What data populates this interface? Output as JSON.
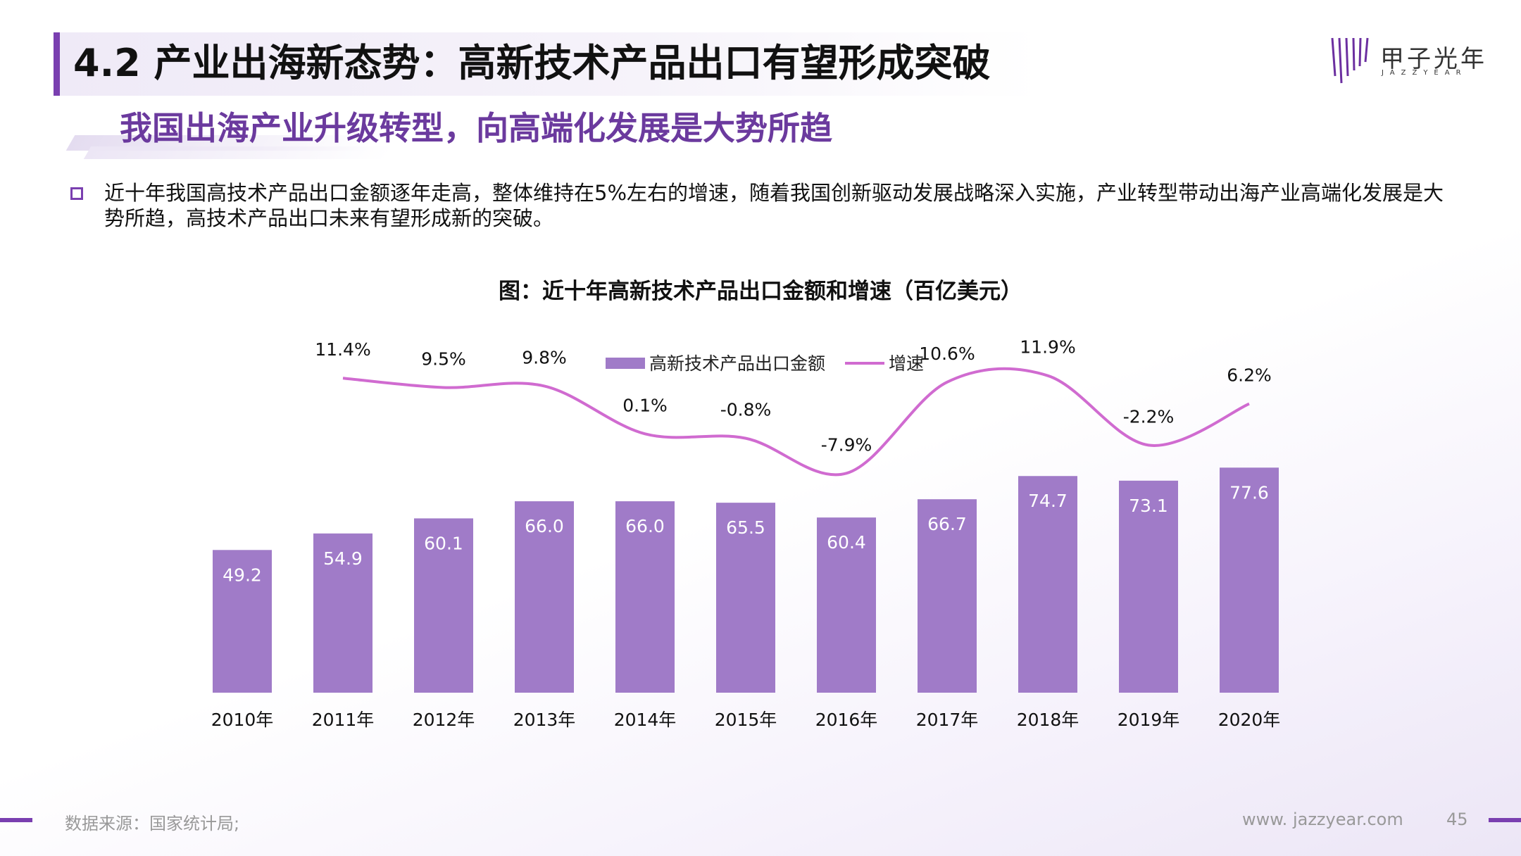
{
  "header": {
    "title": "4.2 产业出海新态势：高新技术产品出口有望形成突破",
    "subtitle": "我国出海产业升级转型，向高端化发展是大势所趋",
    "bullet": "近十年我国高技术产品出口金额逐年走高，整体维持在5%左右的增速，随着我国创新驱动发展战略深入实施，产业转型带动出海产业高端化发展是大势所趋，高技术产品出口未来有望形成新的突破。"
  },
  "logo": {
    "name": "甲子光年",
    "sub": "JAZZYEAR"
  },
  "footer": {
    "source": "数据来源：国家统计局;",
    "site": "www. jazzyear.com",
    "page": "45"
  },
  "colors": {
    "accent": "#7a3fb0",
    "bar": "#a07bc8",
    "line": "#d06bd0"
  },
  "chart_data": {
    "type": "bar",
    "title": "图：近十年高新技术产品出口金额和增速（百亿美元）",
    "categories": [
      "2010年",
      "2011年",
      "2012年",
      "2013年",
      "2014年",
      "2015年",
      "2016年",
      "2017年",
      "2018年",
      "2019年",
      "2020年"
    ],
    "series": [
      {
        "name": "高新技术产品出口金额",
        "type": "bar",
        "values": [
          49.2,
          54.9,
          60.1,
          66.0,
          66.0,
          65.5,
          60.4,
          66.7,
          74.7,
          73.1,
          77.6
        ],
        "labels": [
          "49.2",
          "54.9",
          "60.1",
          "66.0",
          "66.0",
          "65.5",
          "60.4",
          "66.7",
          "74.7",
          "73.1",
          "77.6"
        ]
      },
      {
        "name": "增速",
        "type": "line",
        "values": [
          null,
          11.4,
          9.5,
          9.8,
          0.1,
          -0.8,
          -7.9,
          10.6,
          11.9,
          -2.2,
          6.2
        ],
        "labels": [
          "",
          "11.4%",
          "9.5%",
          "9.8%",
          "0.1%",
          "-0.8%",
          "-7.9%",
          "10.6%",
          "11.9%",
          "-2.2%",
          "6.2%"
        ]
      }
    ],
    "legend_position": "top-center",
    "grid": false
  }
}
